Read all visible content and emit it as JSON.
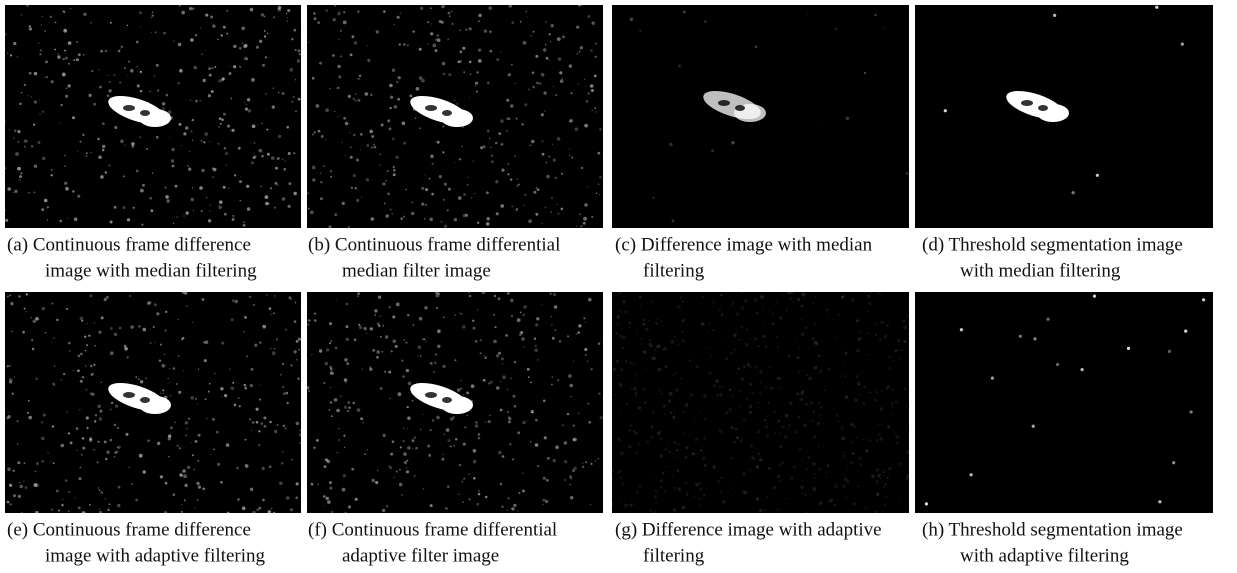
{
  "panels": [
    {
      "caption": [
        "(a) Continuous frame difference",
        "image with median filtering"
      ]
    },
    {
      "caption": [
        "(b) Continuous frame differential",
        "median filter image"
      ]
    },
    {
      "caption": [
        "(c) Difference image with median",
        "filtering"
      ]
    },
    {
      "caption": [
        "(d) Threshold segmentation image",
        "with median filtering"
      ]
    },
    {
      "caption": [
        "(e) Continuous frame difference",
        "image with adaptive filtering"
      ]
    },
    {
      "caption": [
        "(f) Continuous frame differential",
        "adaptive  filter image"
      ]
    },
    {
      "caption": [
        "(g) Difference image with adaptive",
        "filtering"
      ]
    },
    {
      "caption": [
        "(h) Threshold segmentation image",
        "with adaptive filtering"
      ]
    }
  ]
}
